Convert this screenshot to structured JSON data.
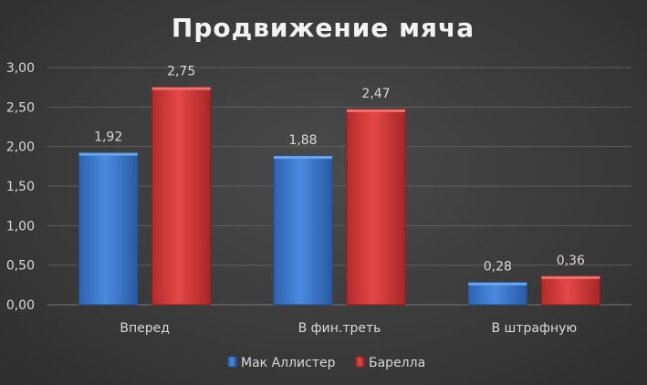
{
  "chart_data": {
    "type": "bar",
    "title": "Продвижение мяча",
    "categories": [
      "Вперед",
      "В фин.треть",
      "В штрафную"
    ],
    "series": [
      {
        "name": "Мак Аллистер",
        "values": [
          1.92,
          1.88,
          0.28
        ],
        "color": "#3f7fd4"
      },
      {
        "name": "Барелла",
        "values": [
          2.75,
          2.47,
          0.36
        ],
        "color": "#d63b3b"
      }
    ],
    "ylim": [
      0,
      3
    ],
    "yticks": [
      "0,00",
      "0,50",
      "1,00",
      "1,50",
      "2,00",
      "2,50",
      "3,00"
    ],
    "value_labels": [
      [
        "1,92",
        "1,88",
        "0,28"
      ],
      [
        "2,75",
        "2,47",
        "0,36"
      ]
    ],
    "legend_position": "bottom",
    "grid": true
  }
}
